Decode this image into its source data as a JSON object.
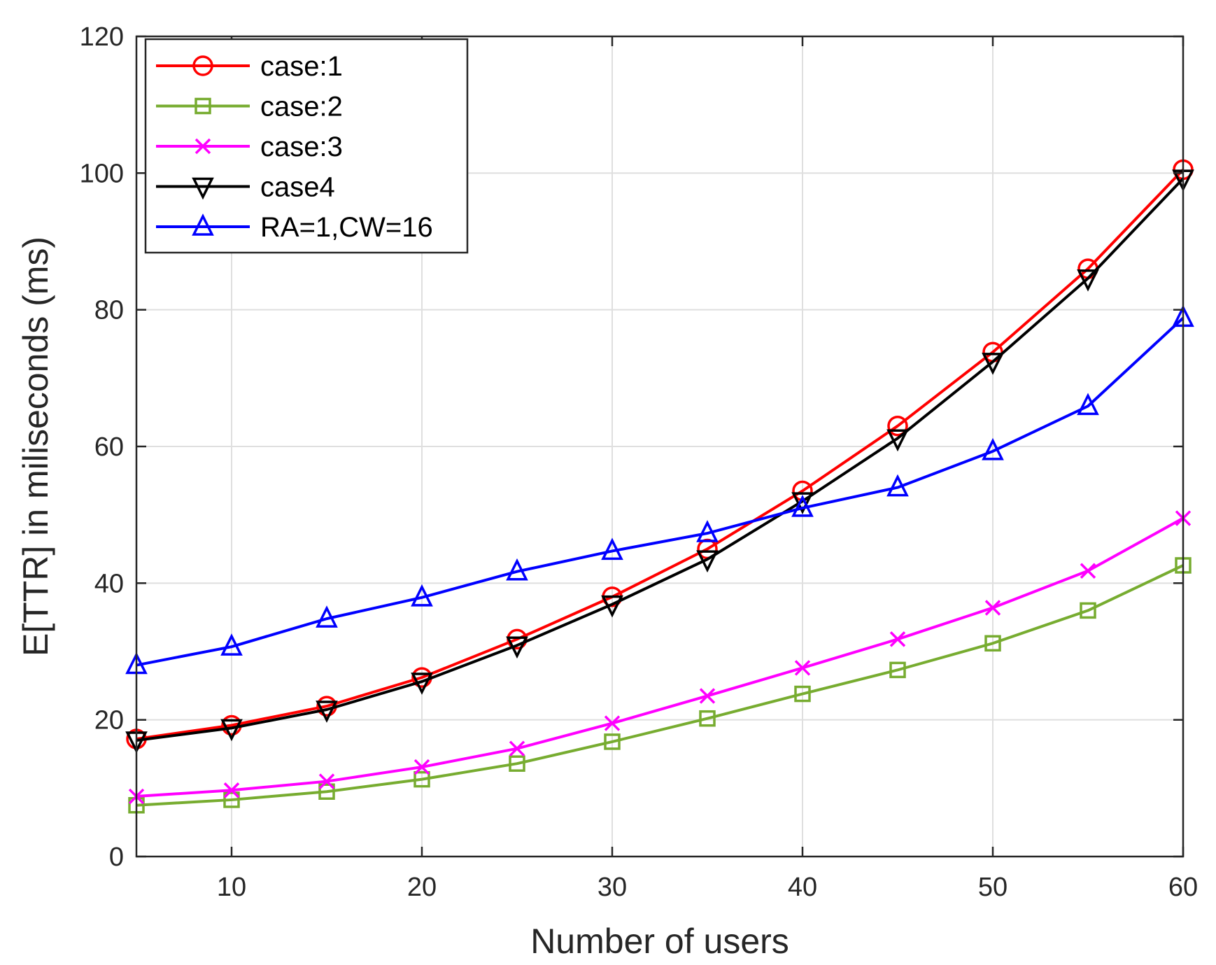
{
  "chart_data": {
    "type": "line",
    "title": "",
    "xlabel": "Number of users",
    "ylabel": "E[TTR] in miliseconds (ms)",
    "xlim": [
      5,
      60
    ],
    "ylim": [
      0,
      120
    ],
    "xticks": [
      10,
      20,
      30,
      40,
      50,
      60
    ],
    "yticks": [
      0,
      20,
      40,
      60,
      80,
      100,
      120
    ],
    "grid": true,
    "legend_position": "top-left",
    "x": [
      5,
      10,
      15,
      20,
      25,
      30,
      35,
      40,
      45,
      50,
      55,
      60
    ],
    "series": [
      {
        "name": "case:1",
        "color": "#ff0000",
        "marker": "circle",
        "values": [
          17.2,
          19.2,
          22.0,
          26.2,
          31.8,
          38.0,
          45.0,
          53.5,
          63.0,
          73.8,
          86.0,
          100.5
        ]
      },
      {
        "name": "case:2",
        "color": "#77ac30",
        "marker": "square",
        "values": [
          7.5,
          8.3,
          9.5,
          11.3,
          13.6,
          16.8,
          20.2,
          23.8,
          27.3,
          31.2,
          36.0,
          42.6
        ]
      },
      {
        "name": "case:3",
        "color": "#ff00ff",
        "marker": "x",
        "values": [
          8.8,
          9.7,
          11.0,
          13.1,
          15.8,
          19.5,
          23.5,
          27.6,
          31.8,
          36.4,
          41.8,
          49.5
        ]
      },
      {
        "name": "case4",
        "color": "#000000",
        "marker": "triangle-down",
        "values": [
          17.0,
          18.8,
          21.5,
          25.6,
          30.9,
          36.9,
          43.5,
          52.0,
          61.2,
          72.4,
          84.6,
          99.2
        ]
      },
      {
        "name": "RA=1,CW=16",
        "color": "#0000ff",
        "marker": "triangle-up",
        "values": [
          28.0,
          30.7,
          34.8,
          37.9,
          41.7,
          44.7,
          47.3,
          51.0,
          54.0,
          59.3,
          65.9,
          78.8
        ]
      }
    ]
  }
}
